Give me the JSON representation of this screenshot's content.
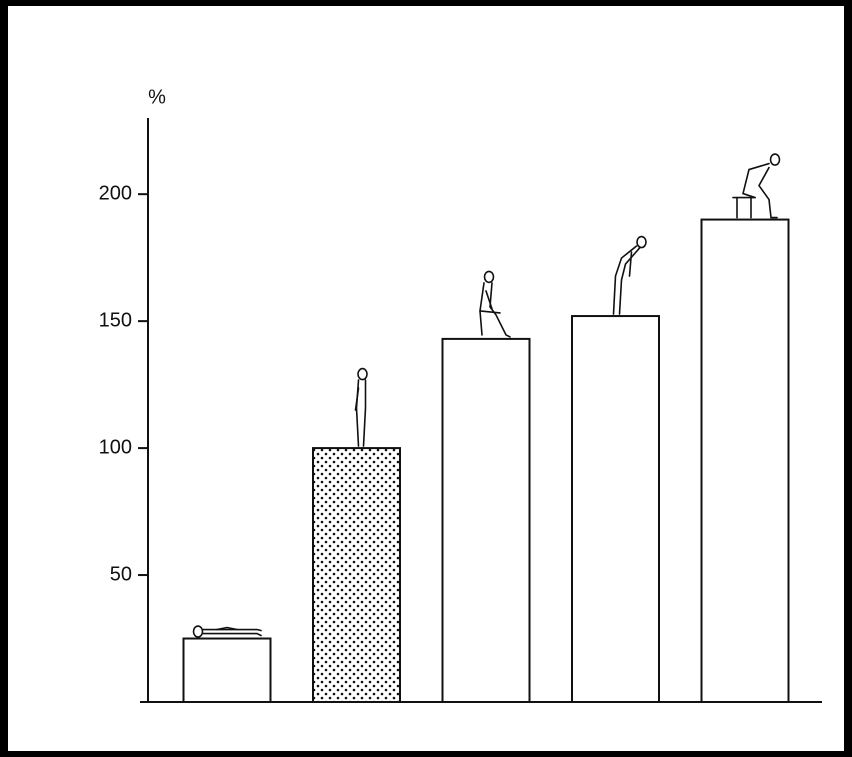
{
  "chart_data": {
    "type": "bar",
    "y_label": "%",
    "categories": [
      null,
      null,
      null,
      null,
      null
    ],
    "values": [
      25,
      100,
      143,
      152,
      190
    ],
    "fills": [
      "white",
      "dotted",
      "white",
      "white",
      "white"
    ],
    "ylim": [
      0,
      230
    ],
    "yticks": [
      50,
      100,
      150,
      200
    ],
    "grid": false
  }
}
